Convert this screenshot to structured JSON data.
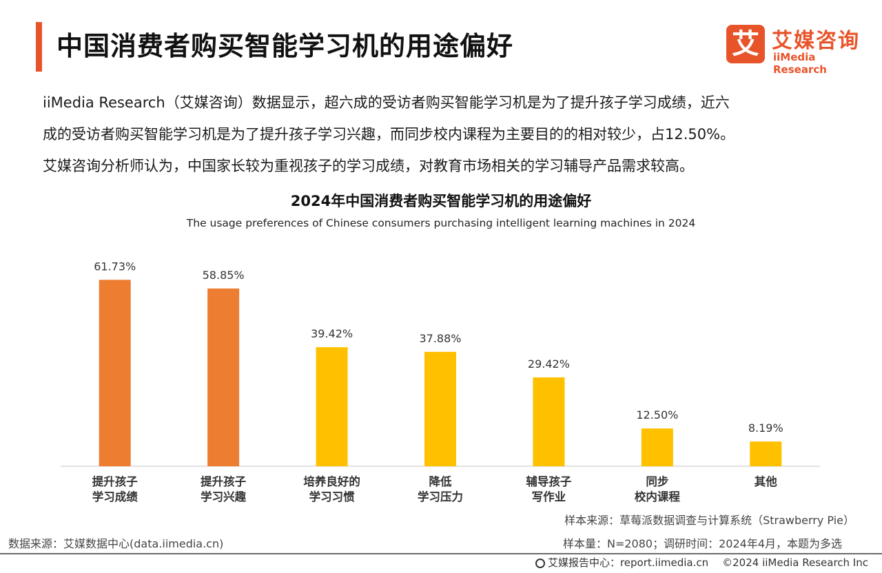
{
  "header": {
    "title": "中国消费者购买智能学习机的用途偏好",
    "logo_mark": "艾",
    "logo_cn": "艾媒咨询",
    "logo_en": "iiMedia Research"
  },
  "intro": {
    "line1": "iiMedia Research（艾媒咨询）数据显示，超六成的受访者购买智能学习机是为了提升孩子学习成绩，近六",
    "line2": "成的受访者购买智能学习机是为了提升孩子学习兴趣，而同步校内课程为主要目的的相对较少，占12.50%。",
    "line3": "艾媒咨询分析师认为，中国家长较为重视孩子的学习成绩，对教育市场相关的学习辅导产品需求较高。"
  },
  "chart_data": {
    "type": "bar",
    "title": "2024年中国消费者购买智能学习机的用途偏好",
    "subtitle": "The usage preferences of Chinese consumers purchasing intelligent learning machines in 2024",
    "categories": [
      [
        "提升孩子",
        "学习成绩"
      ],
      [
        "提升孩子",
        "学习兴趣"
      ],
      [
        "培养良好的",
        "学习习惯"
      ],
      [
        "降低",
        "学习压力"
      ],
      [
        "辅导孩子",
        "写作业"
      ],
      [
        "同步",
        "校内课程"
      ],
      [
        "其他"
      ]
    ],
    "values": [
      61.73,
      58.85,
      39.42,
      37.88,
      29.42,
      12.5,
      8.19
    ],
    "value_labels": [
      "61.73%",
      "58.85%",
      "39.42%",
      "37.88%",
      "29.42%",
      "12.50%",
      "8.19%"
    ],
    "highlight_count": 2,
    "colors": {
      "highlight": "#ed7d31",
      "normal": "#ffc000",
      "axis": "#d9d9d9"
    },
    "ylim": [
      0,
      70
    ],
    "grid": false,
    "legend": "none"
  },
  "footer": {
    "data_source": "数据来源：艾媒数据中心(data.iimedia.cn)",
    "sample_source": "样本来源：草莓派数据调查与计算系统（Strawberry Pie）",
    "sample_size": "样本量：N=2080；调研时间：2024年4月，本题为多选",
    "report_center": "艾媒报告中心：report.iimedia.cn",
    "copyright": "©2024  iiMedia Research  Inc"
  }
}
